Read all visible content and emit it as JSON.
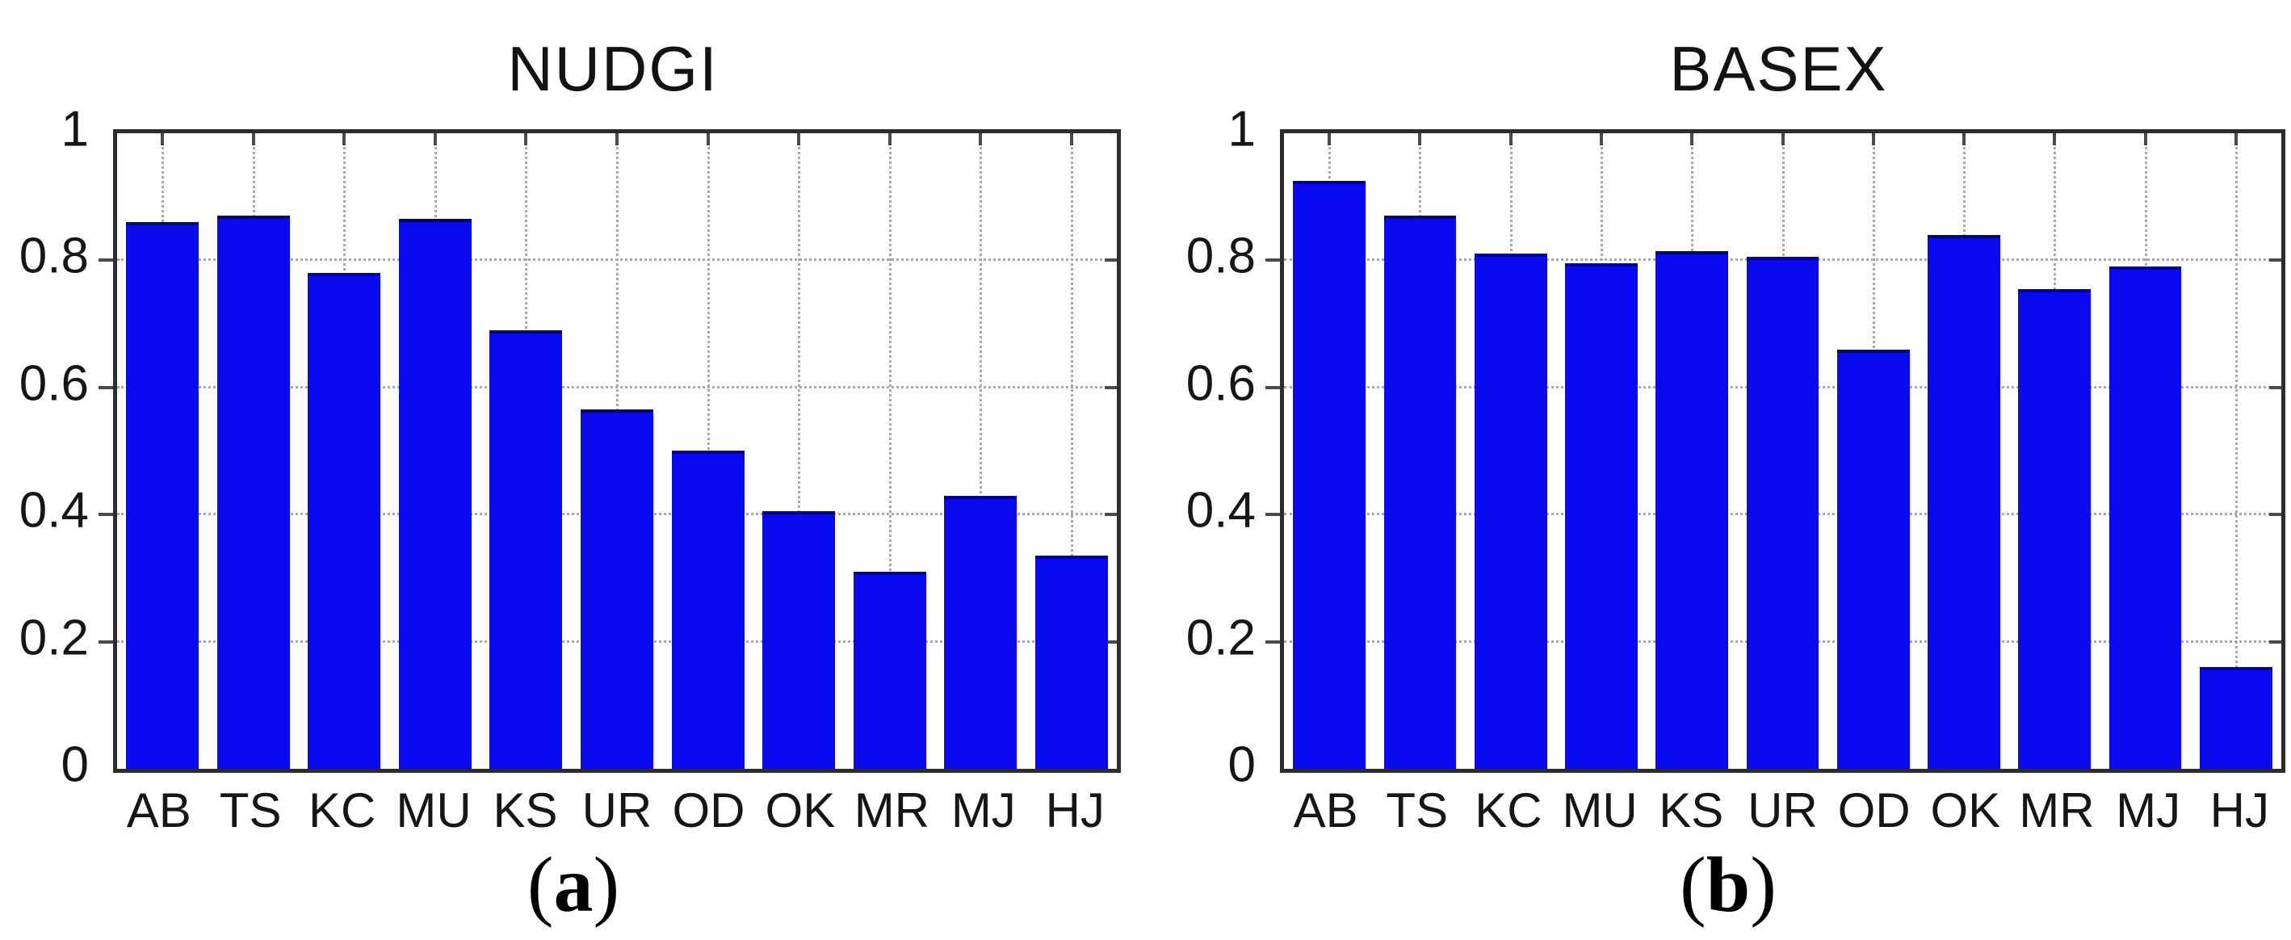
{
  "figure": {
    "bar_fill_color": "#0a0af0",
    "bar_top_edge_color": "#000090",
    "frame_color": "#2d2d2d",
    "grid_color": "#a9a9a9",
    "tick_color": "#4a4a4a"
  },
  "chart_data": [
    {
      "type": "bar",
      "title": "NUDGI",
      "panel_label": {
        "open": "(",
        "letter": "a",
        "close": ")"
      },
      "categories": [
        "AB",
        "TS",
        "KC",
        "MU",
        "KS",
        "UR",
        "OD",
        "OK",
        "MR",
        "MJ",
        "HJ"
      ],
      "values": [
        0.855,
        0.865,
        0.775,
        0.86,
        0.685,
        0.56,
        0.495,
        0.4,
        0.305,
        0.425,
        0.33
      ],
      "xlabel": "",
      "ylabel": "",
      "ylim": [
        0,
        1
      ],
      "yticks": [
        0,
        0.2,
        0.4,
        0.6,
        0.8,
        1
      ],
      "ytick_labels": [
        "0",
        "0.2",
        "0.4",
        "0.6",
        "0.8",
        "1"
      ],
      "grid": true,
      "legend": "none",
      "bar_color": "#0a0af0"
    },
    {
      "type": "bar",
      "title": "BASEX",
      "panel_label": {
        "open": "(",
        "letter": "b",
        "close": ")"
      },
      "categories": [
        "AB",
        "TS",
        "KC",
        "MU",
        "KS",
        "UR",
        "OD",
        "OK",
        "MR",
        "MJ",
        "HJ"
      ],
      "values": [
        0.92,
        0.865,
        0.805,
        0.79,
        0.81,
        0.8,
        0.655,
        0.835,
        0.75,
        0.785,
        0.155
      ],
      "xlabel": "",
      "ylabel": "",
      "ylim": [
        0,
        1
      ],
      "yticks": [
        0,
        0.2,
        0.4,
        0.6,
        0.8,
        1
      ],
      "ytick_labels": [
        "0",
        "0.2",
        "0.4",
        "0.6",
        "0.8",
        "1"
      ],
      "grid": true,
      "legend": "none",
      "bar_color": "#0a0af0"
    }
  ]
}
